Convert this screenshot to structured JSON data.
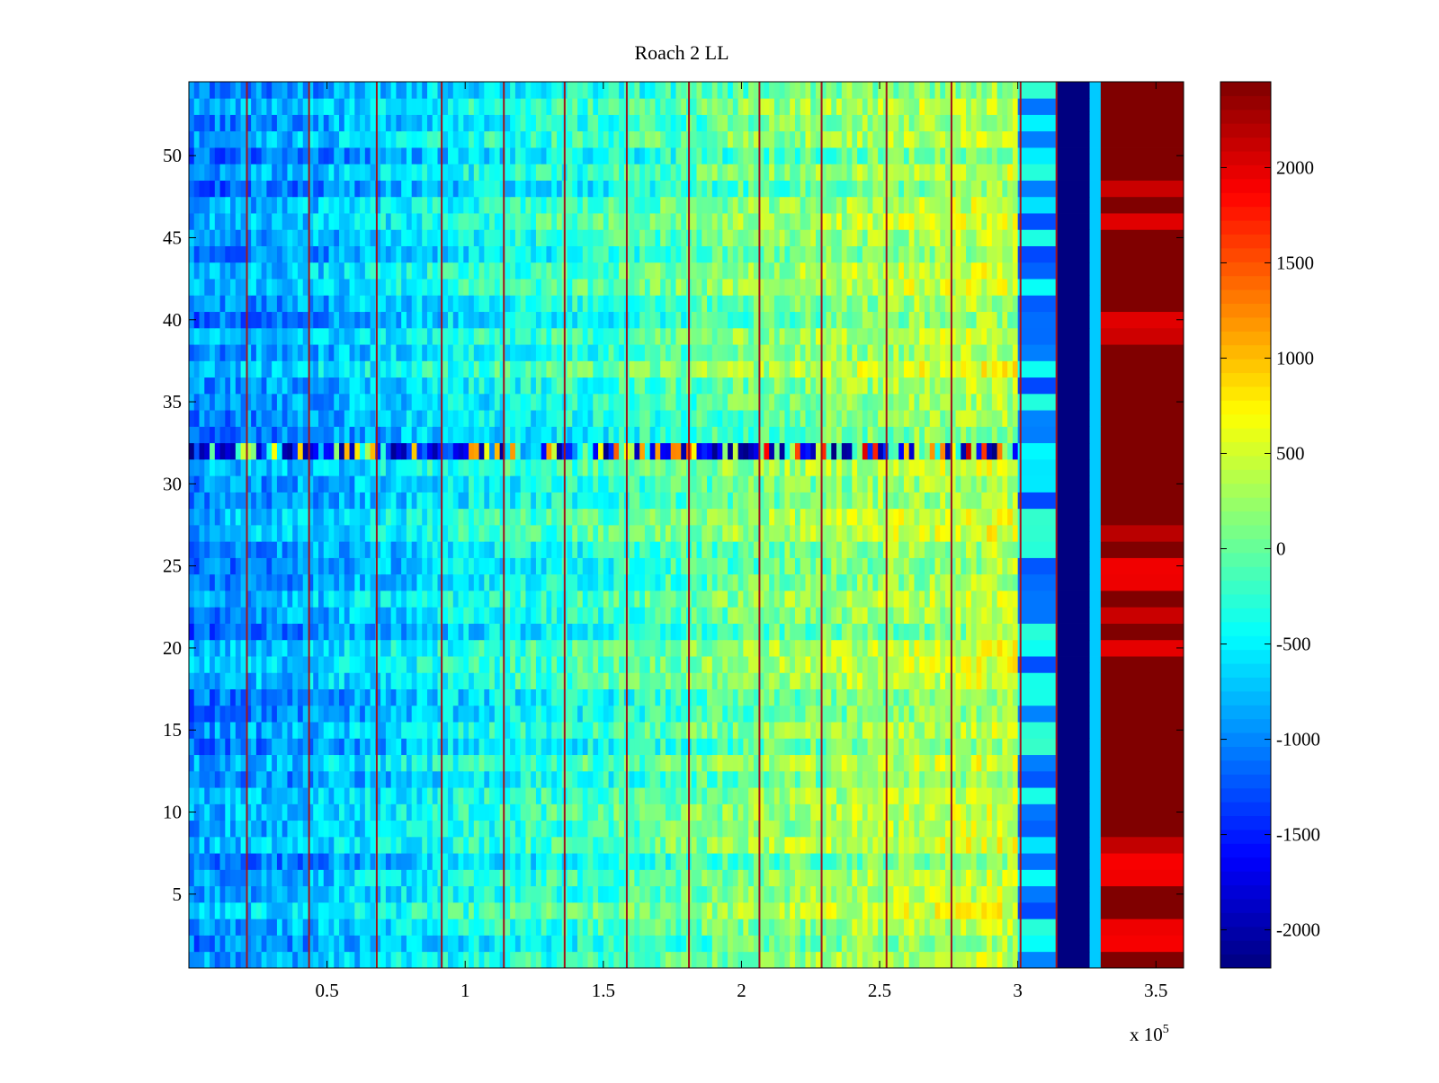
{
  "chart_data": {
    "type": "heatmap",
    "title": "Roach 2 LL",
    "xlabel": "",
    "ylabel": "",
    "x_exponent_label": "x 10",
    "x_exponent_power": "5",
    "xlim": [
      0,
      3.6
    ],
    "ylim": [
      0.5,
      54.5
    ],
    "rows": 54,
    "x_ticks": [
      0.5,
      1,
      1.5,
      2,
      2.5,
      3,
      3.5
    ],
    "x_tick_labels": [
      "0.5",
      "1",
      "1.5",
      "2",
      "2.5",
      "3",
      "3.5"
    ],
    "y_ticks": [
      5,
      10,
      15,
      20,
      25,
      30,
      35,
      40,
      45,
      50
    ],
    "y_tick_labels": [
      "5",
      "10",
      "15",
      "20",
      "25",
      "30",
      "35",
      "40",
      "45",
      "50"
    ],
    "colorbar": {
      "colormap": "jet",
      "clim": [
        -2200,
        2450
      ],
      "ticks": [
        -2000,
        -1500,
        -1000,
        -500,
        0,
        500,
        1000,
        1500,
        2000
      ],
      "tick_labels": [
        "-2000",
        "-1500",
        "-1000",
        "-500",
        "0",
        "500",
        "1000",
        "1500",
        "2000"
      ]
    },
    "value_trend": [
      {
        "x": 0.0,
        "value": -1000
      },
      {
        "x": 0.5,
        "value": -800
      },
      {
        "x": 1.0,
        "value": -450
      },
      {
        "x": 1.5,
        "value": -250
      },
      {
        "x": 2.0,
        "value": 50
      },
      {
        "x": 2.5,
        "value": 250
      },
      {
        "x": 3.0,
        "value": 400
      }
    ],
    "blocks": [
      {
        "x_start": 3.0,
        "x_end": 3.14,
        "value": -900,
        "note_ref": "bands.mixed"
      },
      {
        "x_start": 3.14,
        "x_end": 3.26,
        "value": -2200
      },
      {
        "x_start": 3.26,
        "x_end": 3.3,
        "value": -700
      },
      {
        "x_start": 3.3,
        "x_end": 3.6,
        "value": 2450
      }
    ],
    "bright_rows_in_last_block": [
      2,
      3,
      6,
      7,
      8,
      20,
      22,
      24,
      25,
      27,
      39,
      40,
      46,
      48
    ],
    "anomalous_row": 32,
    "vertical_stripes_x": [
      0.21,
      0.435,
      0.68,
      0.915,
      1.14,
      1.36,
      1.585,
      1.81,
      2.065,
      2.29,
      2.525,
      2.76,
      3.01,
      3.14
    ]
  }
}
